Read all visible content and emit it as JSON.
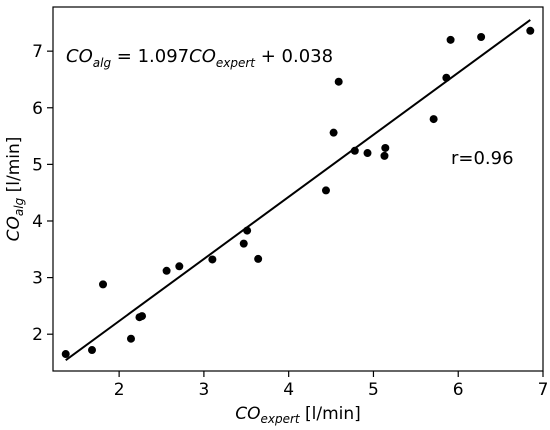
{
  "chart_data": {
    "type": "scatter",
    "xlabel": {
      "main": "CO",
      "sub": "expert",
      "unit": " [l/min]"
    },
    "ylabel": {
      "main": "CO",
      "sub": "alg",
      "unit": " [l/min]"
    },
    "xlim": [
      1.22,
      7.0
    ],
    "ylim": [
      1.35,
      7.78
    ],
    "xticks": [
      2,
      3,
      4,
      5,
      6,
      7
    ],
    "yticks": [
      2,
      3,
      4,
      5,
      6,
      7
    ],
    "grid": false,
    "points": [
      [
        1.37,
        1.65
      ],
      [
        1.68,
        1.72
      ],
      [
        1.81,
        2.88
      ],
      [
        2.14,
        1.92
      ],
      [
        2.24,
        2.3
      ],
      [
        2.27,
        2.32
      ],
      [
        2.56,
        3.12
      ],
      [
        2.71,
        3.2
      ],
      [
        3.1,
        3.32
      ],
      [
        3.47,
        3.6
      ],
      [
        3.51,
        3.83
      ],
      [
        3.64,
        3.33
      ],
      [
        4.44,
        4.54
      ],
      [
        4.53,
        5.56
      ],
      [
        4.59,
        6.46
      ],
      [
        4.78,
        5.24
      ],
      [
        4.93,
        5.2
      ],
      [
        5.13,
        5.15
      ],
      [
        5.14,
        5.29
      ],
      [
        5.71,
        5.8
      ],
      [
        5.86,
        6.53
      ],
      [
        5.91,
        7.2
      ],
      [
        6.27,
        7.25
      ],
      [
        6.85,
        7.36
      ]
    ],
    "fit": {
      "slope": 1.097,
      "intercept": 0.038,
      "x_range": [
        1.37,
        6.85
      ]
    },
    "annotations": {
      "equation": {
        "lhs_main": "CO",
        "lhs_sub": "alg",
        "mid": " = 1.097",
        "rhs_main": "CO",
        "rhs_sub": "expert",
        "tail": " + 0.038"
      },
      "r_text": "r=0.96"
    },
    "colors": {
      "points": "#000000",
      "line": "#000000",
      "axes": "#000000"
    }
  }
}
